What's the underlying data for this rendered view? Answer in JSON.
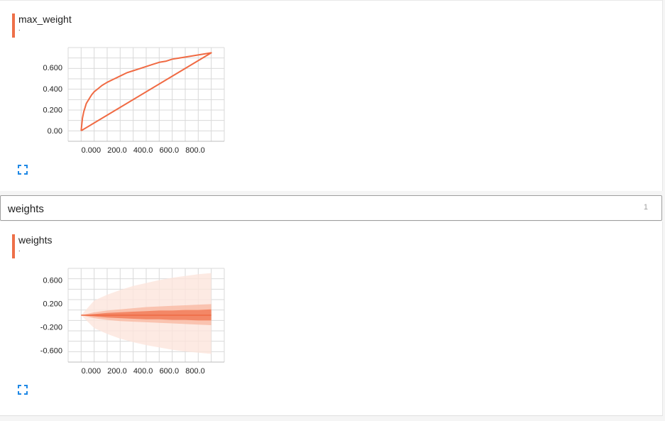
{
  "colors": {
    "accent": "#ee7049",
    "line": "#f06a43",
    "grid": "#d9d9d9",
    "band_light": "#fde5dc",
    "band_mid": "#f9b9a2",
    "band_dark": "#f2815e"
  },
  "cards": [
    {
      "title": "max_weight",
      "subtitle": ".",
      "expand_icon": "fullscreen-icon"
    },
    {
      "title": "weights",
      "subtitle": ".",
      "expand_icon": "fullscreen-icon"
    }
  ],
  "section": {
    "title": "weights",
    "count": "1"
  },
  "chart_data": [
    {
      "type": "line",
      "title": "max_weight",
      "x_ticks": [
        "0.000",
        "200.0",
        "400.0",
        "600.0",
        "800.0"
      ],
      "y_ticks": [
        "0.600",
        "0.400",
        "0.200",
        "0.00"
      ],
      "xlim": [
        -100,
        1100
      ],
      "ylim": [
        -0.1,
        0.79
      ],
      "series": [
        {
          "x": [
            0,
            10,
            20,
            30,
            40,
            60,
            80,
            100,
            130,
            160,
            200,
            250,
            300,
            350,
            400,
            450,
            500,
            550,
            600,
            650,
            700,
            750,
            800,
            850,
            900,
            950,
            1000,
            0
          ],
          "y": [
            0.0,
            0.12,
            0.18,
            0.22,
            0.26,
            0.3,
            0.34,
            0.37,
            0.4,
            0.43,
            0.46,
            0.49,
            0.52,
            0.55,
            0.57,
            0.59,
            0.61,
            0.63,
            0.65,
            0.66,
            0.68,
            0.69,
            0.7,
            0.71,
            0.72,
            0.73,
            0.74,
            0.0
          ]
        }
      ],
      "grid": true
    },
    {
      "type": "area",
      "title": "weights",
      "x_ticks": [
        "0.000",
        "200.0",
        "400.0",
        "600.0",
        "800.0"
      ],
      "y_ticks": [
        "0.600",
        "0.200",
        "-0.200",
        "-0.600"
      ],
      "xlim": [
        -100,
        1100
      ],
      "ylim": [
        -0.8,
        0.8
      ],
      "bands": [
        {
          "x": [
            0,
            100,
            200,
            300,
            400,
            500,
            600,
            700,
            800,
            900,
            1000
          ],
          "upper": [
            0.0,
            0.25,
            0.35,
            0.43,
            0.5,
            0.55,
            0.6,
            0.64,
            0.67,
            0.7,
            0.72
          ],
          "lower": [
            0.0,
            -0.22,
            -0.32,
            -0.4,
            -0.46,
            -0.51,
            -0.55,
            -0.59,
            -0.62,
            -0.64,
            -0.66
          ],
          "shade": "light"
        },
        {
          "x": [
            0,
            100,
            200,
            300,
            400,
            500,
            600,
            700,
            800,
            900,
            1000
          ],
          "upper": [
            0.0,
            0.05,
            0.08,
            0.1,
            0.12,
            0.14,
            0.15,
            0.16,
            0.17,
            0.18,
            0.19
          ],
          "lower": [
            0.0,
            -0.05,
            -0.08,
            -0.1,
            -0.11,
            -0.12,
            -0.13,
            -0.14,
            -0.15,
            -0.16,
            -0.17
          ],
          "shade": "mid"
        },
        {
          "x": [
            0,
            100,
            200,
            300,
            400,
            500,
            600,
            700,
            800,
            900,
            1000
          ],
          "upper": [
            0.0,
            0.02,
            0.04,
            0.05,
            0.06,
            0.07,
            0.08,
            0.08,
            0.09,
            0.09,
            0.1
          ],
          "lower": [
            0.0,
            -0.02,
            -0.04,
            -0.05,
            -0.06,
            -0.07,
            -0.07,
            -0.08,
            -0.08,
            -0.09,
            -0.09
          ],
          "shade": "dark"
        }
      ],
      "median": {
        "x": [
          0,
          1000
        ],
        "y": [
          0.0,
          0.0
        ]
      },
      "grid": true
    }
  ]
}
